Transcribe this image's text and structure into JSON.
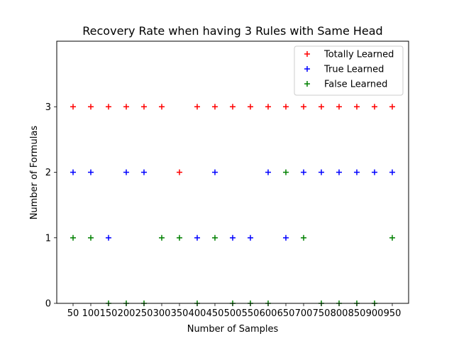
{
  "chart_data": {
    "type": "scatter",
    "title": "Recovery Rate when having 3 Rules with Same Head",
    "xlabel": "Number of Samples",
    "ylabel": "Number of Formulas",
    "x": [
      50,
      100,
      150,
      200,
      250,
      300,
      350,
      400,
      450,
      500,
      550,
      600,
      650,
      700,
      750,
      800,
      850,
      900,
      950
    ],
    "x_tick_labels": [
      "50",
      "100",
      "150",
      "200",
      "250",
      "300",
      "350",
      "400",
      "450",
      "500",
      "550",
      "600",
      "650",
      "700",
      "750",
      "800",
      "850",
      "900",
      "950"
    ],
    "yticks": [
      0,
      1,
      2,
      3
    ],
    "ylim": [
      0,
      4
    ],
    "marker": "+",
    "grid": false,
    "legend_position": "top-right",
    "series": [
      {
        "name": "Totally Learned",
        "color": "#ff0000",
        "values": [
          3,
          3,
          3,
          3,
          3,
          3,
          2,
          3,
          3,
          3,
          3,
          3,
          3,
          3,
          3,
          3,
          3,
          3,
          3
        ]
      },
      {
        "name": "True Learned",
        "color": "#0000ff",
        "values": [
          2,
          2,
          1,
          2,
          2,
          null,
          null,
          1,
          2,
          1,
          1,
          2,
          1,
          2,
          2,
          2,
          2,
          2,
          2
        ]
      },
      {
        "name": "False Learned",
        "color": "#008000",
        "values": [
          1,
          1,
          0,
          0,
          0,
          1,
          1,
          0,
          1,
          0,
          0,
          0,
          2,
          1,
          0,
          0,
          0,
          0,
          1
        ]
      }
    ]
  }
}
